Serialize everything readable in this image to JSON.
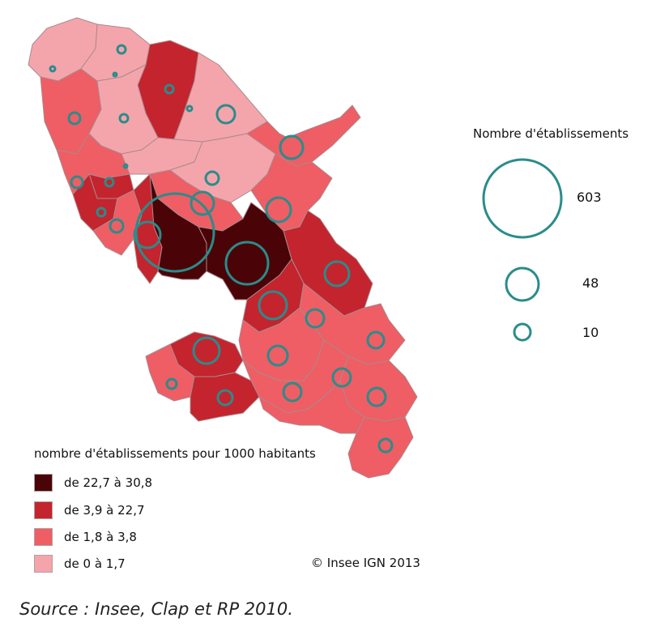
{
  "size_legend": {
    "title": "Nombre d'établissements",
    "values": [
      "603",
      "48",
      "10"
    ]
  },
  "color_legend": {
    "title": "nombre d'établissements pour 1000 habitants",
    "classes": [
      {
        "label": "de 22,7 à 30,8",
        "color": "#4a0407"
      },
      {
        "label": "de 3,9 à 22,7",
        "color": "#c4242d"
      },
      {
        "label": "de 1,8 à 3,8",
        "color": "#ee5e64"
      },
      {
        "label": "de 0 à 1,7",
        "color": "#f4a5ab"
      }
    ]
  },
  "copyright": "© Insee IGN 2013",
  "source": "Source : Insee, Clap et RP 2010.",
  "colors": {
    "circle_stroke": "#2a8c8b",
    "boundary": "#a98a8e"
  }
}
